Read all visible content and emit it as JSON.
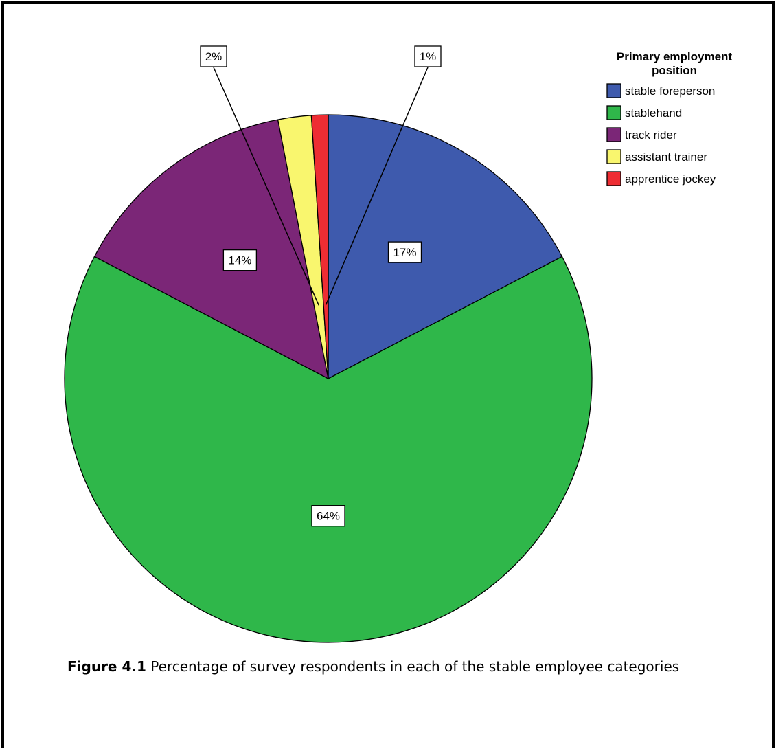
{
  "chart_data": {
    "type": "pie",
    "legend_title_lines": [
      "Primary employment",
      "position"
    ],
    "legend_placement": "top-right",
    "slices": [
      {
        "label": "stable foreperson",
        "value": 17,
        "display": "17%",
        "color": "#3e5aad"
      },
      {
        "label": "stablehand",
        "value": 64,
        "display": "64%",
        "color": "#2fb74a"
      },
      {
        "label": "track rider",
        "value": 14,
        "display": "14%",
        "color": "#7b2677"
      },
      {
        "label": "assistant trainer",
        "value": 2,
        "display": "2%",
        "color": "#f9f66e"
      },
      {
        "label": "apprentice jockey",
        "value": 1,
        "display": "1%",
        "color": "#ee2d33"
      }
    ]
  },
  "caption": {
    "label": "Figure 4.1",
    "text": " Percentage of survey respondents in each of the stable employee categories"
  }
}
